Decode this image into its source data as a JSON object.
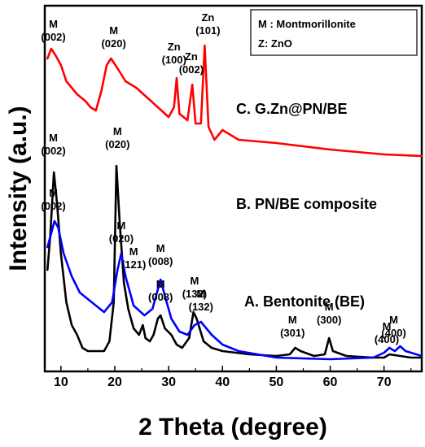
{
  "chart_data": {
    "type": "line",
    "xlabel": "2 Theta (degree)",
    "ylabel": "Intensity (a.u.)",
    "xlim": [
      7,
      77
    ],
    "x_ticks": [
      10,
      20,
      30,
      40,
      50,
      60,
      70
    ],
    "y_ticks_shown": false,
    "grid": false,
    "legend": {
      "position": "top-right",
      "entries": [
        "M : Montmorillonite",
        "Z: ZnO"
      ]
    },
    "series": [
      {
        "name": "A. Bentonite (BE)",
        "color": "#000000",
        "points": [
          [
            7.5,
            0.3
          ],
          [
            8.0,
            0.4
          ],
          [
            8.7,
            0.6
          ],
          [
            9.3,
            0.5
          ],
          [
            10,
            0.35
          ],
          [
            11,
            0.2
          ],
          [
            12,
            0.13
          ],
          [
            13,
            0.1
          ],
          [
            14,
            0.06
          ],
          [
            15,
            0.05
          ],
          [
            17,
            0.05
          ],
          [
            18,
            0.05
          ],
          [
            19,
            0.08
          ],
          [
            19.8,
            0.2
          ],
          [
            20.3,
            0.62
          ],
          [
            20.9,
            0.45
          ],
          [
            21.7,
            0.26
          ],
          [
            22.5,
            0.18
          ],
          [
            23.5,
            0.12
          ],
          [
            24.5,
            0.1
          ],
          [
            25.2,
            0.13
          ],
          [
            25.7,
            0.09
          ],
          [
            26.5,
            0.08
          ],
          [
            27.2,
            0.1
          ],
          [
            28.0,
            0.15
          ],
          [
            28.5,
            0.16
          ],
          [
            29.3,
            0.12
          ],
          [
            30.5,
            0.1
          ],
          [
            31.5,
            0.07
          ],
          [
            32.5,
            0.06
          ],
          [
            33.8,
            0.09
          ],
          [
            34.6,
            0.17
          ],
          [
            35.2,
            0.15
          ],
          [
            36.5,
            0.08
          ],
          [
            38,
            0.06
          ],
          [
            40,
            0.05
          ],
          [
            45,
            0.04
          ],
          [
            50,
            0.035
          ],
          [
            52.5,
            0.04
          ],
          [
            53.5,
            0.06
          ],
          [
            54.5,
            0.05
          ],
          [
            57,
            0.035
          ],
          [
            59,
            0.04
          ],
          [
            59.8,
            0.09
          ],
          [
            60.5,
            0.05
          ],
          [
            63,
            0.035
          ],
          [
            68,
            0.03
          ],
          [
            70,
            0.03
          ],
          [
            71,
            0.04
          ],
          [
            73,
            0.035
          ],
          [
            75,
            0.03
          ],
          [
            77,
            0.03
          ]
        ]
      },
      {
        "name": "B. PN/BE composite",
        "color": "#0000ff",
        "points": [
          [
            7.5,
            0.37
          ],
          [
            8.0,
            0.4
          ],
          [
            8.8,
            0.45
          ],
          [
            9.5,
            0.43
          ],
          [
            10.5,
            0.35
          ],
          [
            12,
            0.28
          ],
          [
            13.5,
            0.23
          ],
          [
            15,
            0.21
          ],
          [
            16.5,
            0.19
          ],
          [
            18,
            0.17
          ],
          [
            19.5,
            0.2
          ],
          [
            20.5,
            0.3
          ],
          [
            21.2,
            0.35
          ],
          [
            22,
            0.28
          ],
          [
            23.5,
            0.19
          ],
          [
            25.5,
            0.16
          ],
          [
            27,
            0.18
          ],
          [
            28,
            0.24
          ],
          [
            28.5,
            0.27
          ],
          [
            29.3,
            0.22
          ],
          [
            30.5,
            0.15
          ],
          [
            32,
            0.11
          ],
          [
            33.5,
            0.1
          ],
          [
            34.8,
            0.13
          ],
          [
            36,
            0.14
          ],
          [
            38,
            0.1
          ],
          [
            40,
            0.07
          ],
          [
            43,
            0.05
          ],
          [
            50,
            0.03
          ],
          [
            60,
            0.025
          ],
          [
            68,
            0.03
          ],
          [
            70,
            0.045
          ],
          [
            71,
            0.06
          ],
          [
            72,
            0.05
          ],
          [
            73,
            0.065
          ],
          [
            74,
            0.05
          ],
          [
            76,
            0.04
          ],
          [
            77,
            0.035
          ]
        ]
      },
      {
        "name": "C. G.Zn@PN/BE",
        "color": "#ff0000",
        "points": [
          [
            7.5,
            0.95
          ],
          [
            8.2,
            0.98
          ],
          [
            9,
            0.96
          ],
          [
            10,
            0.93
          ],
          [
            11,
            0.88
          ],
          [
            12,
            0.86
          ],
          [
            13,
            0.84
          ],
          [
            14.5,
            0.82
          ],
          [
            15.5,
            0.8
          ],
          [
            16.5,
            0.79
          ],
          [
            17.5,
            0.85
          ],
          [
            18.5,
            0.93
          ],
          [
            19.3,
            0.95
          ],
          [
            20.5,
            0.92
          ],
          [
            22,
            0.88
          ],
          [
            24,
            0.86
          ],
          [
            26,
            0.83
          ],
          [
            28,
            0.8
          ],
          [
            30,
            0.77
          ],
          [
            31,
            0.8
          ],
          [
            31.5,
            0.89
          ],
          [
            32,
            0.78
          ],
          [
            33.5,
            0.76
          ],
          [
            34.4,
            0.87
          ],
          [
            35,
            0.75
          ],
          [
            36,
            0.75
          ],
          [
            36.7,
            0.99
          ],
          [
            37.4,
            0.74
          ],
          [
            38.5,
            0.7
          ],
          [
            40,
            0.73
          ],
          [
            41,
            0.72
          ],
          [
            43,
            0.7
          ],
          [
            50,
            0.69
          ],
          [
            60,
            0.67
          ],
          [
            70,
            0.655
          ],
          [
            77,
            0.65
          ]
        ]
      }
    ],
    "peak_annotations": [
      {
        "x": 8.6,
        "y": 0.99,
        "lines": [
          "M",
          "(002)"
        ]
      },
      {
        "x": 19.8,
        "y": 0.97,
        "lines": [
          "M",
          "(020)"
        ]
      },
      {
        "x": 31.0,
        "y": 0.92,
        "lines": [
          "Zn",
          "(100)"
        ]
      },
      {
        "x": 34.2,
        "y": 0.89,
        "lines": [
          "Zn",
          "(002)"
        ]
      },
      {
        "x": 37.3,
        "y": 1.01,
        "lines": [
          "Zn",
          "(101)"
        ]
      },
      {
        "x": 8.6,
        "y": 0.47,
        "lines": [
          "M",
          "(002)"
        ]
      },
      {
        "x": 21.2,
        "y": 0.37,
        "lines": [
          "M",
          "(020)"
        ]
      },
      {
        "x": 28.5,
        "y": 0.3,
        "lines": [
          "M",
          "(008)"
        ]
      },
      {
        "x": 36.0,
        "y": 0.16,
        "lines": [
          "M",
          "(132)"
        ]
      },
      {
        "x": 71.8,
        "y": 0.08,
        "lines": [
          "M",
          "(400)"
        ]
      },
      {
        "x": 8.6,
        "y": 0.64,
        "lines": [
          "M",
          "(002)"
        ]
      },
      {
        "x": 20.5,
        "y": 0.66,
        "lines": [
          "M",
          "(020)"
        ]
      },
      {
        "x": 23.5,
        "y": 0.29,
        "lines": [
          "M",
          "(121)"
        ]
      },
      {
        "x": 28.5,
        "y": 0.19,
        "lines": [
          "M",
          "(008)"
        ]
      },
      {
        "x": 34.8,
        "y": 0.2,
        "lines": [
          "M",
          "(132)"
        ]
      },
      {
        "x": 53.0,
        "y": 0.08,
        "lines": [
          "M",
          "(301)"
        ]
      },
      {
        "x": 59.8,
        "y": 0.12,
        "lines": [
          "M",
          "(300)"
        ]
      },
      {
        "x": 70.5,
        "y": 0.06,
        "lines": [
          "M",
          "(400)"
        ]
      }
    ]
  }
}
